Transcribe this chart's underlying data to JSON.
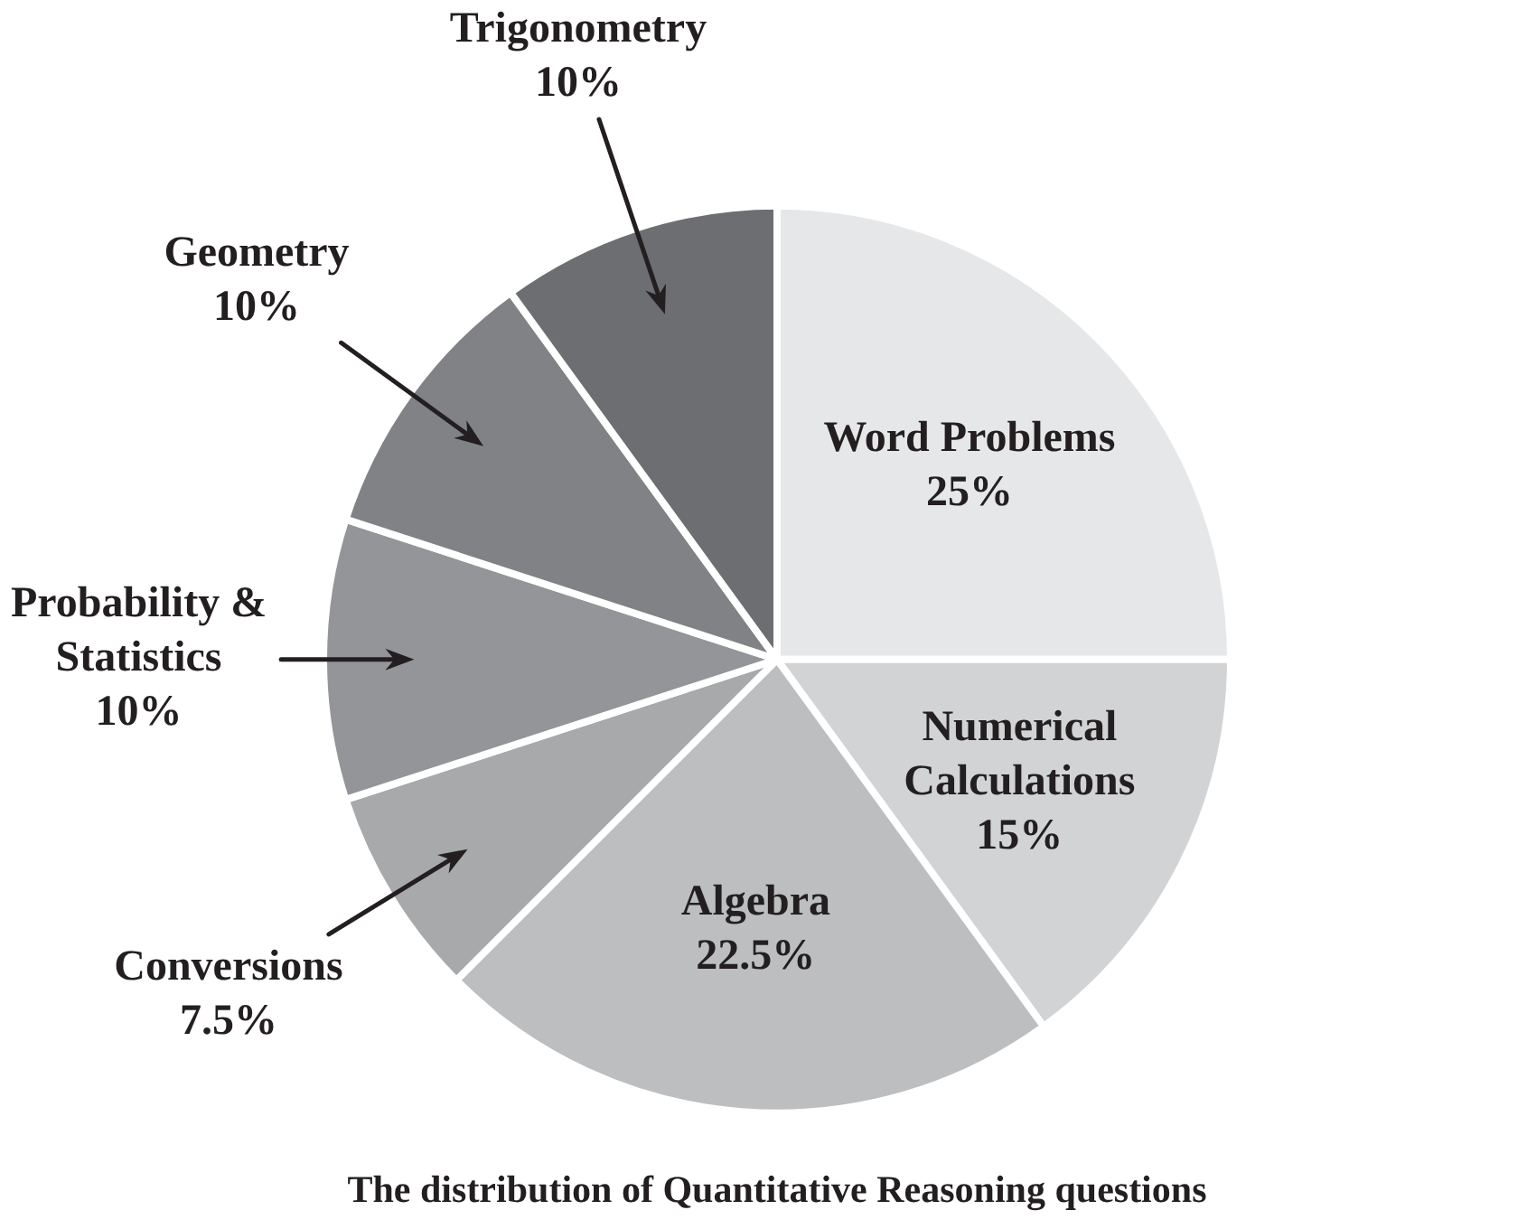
{
  "chart_data": {
    "type": "pie",
    "title": "The distribution of Quantitative Reasoning questions",
    "categories": [
      "Word Problems",
      "Numerical Calculations",
      "Algebra",
      "Conversions",
      "Probability & Statistics",
      "Geometry",
      "Trigonometry"
    ],
    "values": [
      25,
      15,
      22.5,
      7.5,
      10,
      10,
      10
    ],
    "colors": [
      "#e6e7e8",
      "#d1d3d4",
      "#bcbec0",
      "#a7a9ab",
      "#939598",
      "#808285",
      "#6d6e71"
    ],
    "value_labels": [
      "25%",
      "15%",
      "22.5%",
      "7.5%",
      "10%",
      "10%",
      "10%"
    ]
  }
}
